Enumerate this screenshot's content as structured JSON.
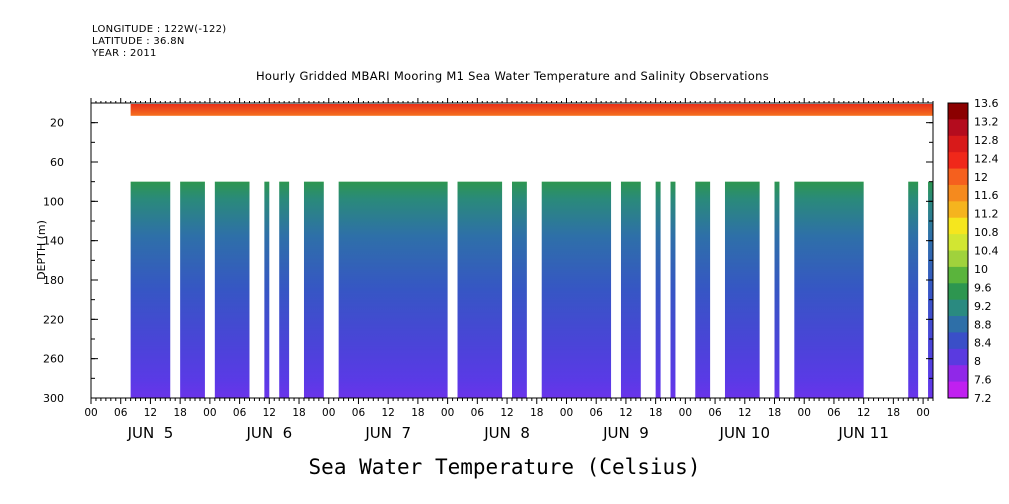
{
  "header": {
    "longitude": "LONGITUDE : 122W(-122)",
    "latitude": "LATITUDE : 36.8N",
    "year": "YEAR : 2011",
    "title": "Hourly Gridded MBARI Mooring M1 Sea Water Temperature and Salinity Observations"
  },
  "footer": {
    "variable_title": "Sea Water Temperature (Celsius)"
  },
  "colors": {
    "surface_band": "#f05a1e",
    "surface_dark": "#e02818"
  },
  "chart_data": {
    "type": "heatmap",
    "title": "Hourly Gridded MBARI Mooring M1 Sea Water Temperature and Salinity Observations",
    "ylabel": "DEPTH (m)",
    "xlabel": "",
    "y_range": [
      300,
      0
    ],
    "y_inverted": true,
    "y_ticks": [
      20,
      60,
      100,
      140,
      180,
      220,
      260,
      300
    ],
    "x_range_hours": [
      0,
      170
    ],
    "x_hour_labels": [
      "00",
      "06",
      "12",
      "18",
      "00",
      "06",
      "12",
      "18",
      "00",
      "06",
      "12",
      "18",
      "00",
      "06",
      "12",
      "18",
      "00",
      "06",
      "12",
      "18",
      "00",
      "06",
      "12",
      "18",
      "00",
      "06",
      "12",
      "18",
      "00"
    ],
    "day_labels": [
      "JUN  5",
      "JUN  6",
      "JUN  7",
      "JUN  8",
      "JUN  9",
      "JUN 10",
      "JUN 11"
    ],
    "surface_band": {
      "depth_top": 0,
      "depth_bottom": 12,
      "temp_approx": 12.2,
      "start_hour": 8,
      "end_hour": 170
    },
    "deep_segments_depth": [
      80,
      300
    ],
    "deep_segments_hours": [
      [
        8,
        16
      ],
      [
        18,
        23
      ],
      [
        25,
        32
      ],
      [
        35,
        36
      ],
      [
        38,
        40
      ],
      [
        43,
        47
      ],
      [
        50,
        72
      ],
      [
        74,
        83
      ],
      [
        85,
        88
      ],
      [
        91,
        105
      ],
      [
        107,
        111
      ],
      [
        114,
        115
      ],
      [
        117,
        118
      ],
      [
        122,
        125
      ],
      [
        128,
        135
      ],
      [
        138,
        139
      ],
      [
        142,
        156
      ],
      [
        165,
        167
      ],
      [
        169,
        170
      ]
    ],
    "profile": [
      {
        "depth": 80,
        "temp": 9.2
      },
      {
        "depth": 100,
        "temp": 9.0
      },
      {
        "depth": 140,
        "temp": 8.7
      },
      {
        "depth": 180,
        "temp": 8.4
      },
      {
        "depth": 220,
        "temp": 8.1
      },
      {
        "depth": 260,
        "temp": 7.9
      },
      {
        "depth": 300,
        "temp": 7.7
      }
    ],
    "colorbar": {
      "labels": [
        "13.6",
        "13.2",
        "12.8",
        "12.4",
        "12",
        "11.6",
        "11.2",
        "10.8",
        "10.4",
        "10",
        "9.6",
        "9.2",
        "8.8",
        "8.4",
        "8",
        "7.6",
        "7.2"
      ],
      "colors": [
        "#8b0000",
        "#b40c1e",
        "#d81a1a",
        "#f0281a",
        "#f5601e",
        "#f58a1e",
        "#f5b41e",
        "#f5e61e",
        "#d2e632",
        "#a0d23c",
        "#5ab43c",
        "#2d9650",
        "#2a8a80",
        "#2e6fa8",
        "#3a4fc8",
        "#5a3ae0",
        "#9028e8",
        "#c020f0"
      ]
    }
  }
}
